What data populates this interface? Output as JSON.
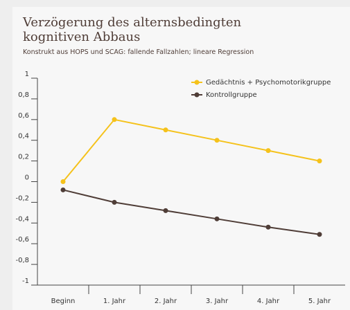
{
  "chart_data": {
    "type": "line",
    "title": "Verzögerung des alternsbedingten kognitiven Abbaus",
    "subtitle": "Konstrukt aus HOPS und SCAG: fallende Fallzahlen; lineare Regression",
    "categories": [
      "Beginn",
      "1. Jahr",
      "2. Jahr",
      "3. Jahr",
      "4. Jahr",
      "5. Jahr"
    ],
    "series": [
      {
        "name": "Gedächtnis + Psychomotorikgruppe",
        "color": "#f5c21b",
        "values": [
          0,
          0.6,
          0.5,
          0.4,
          0.3,
          0.2
        ]
      },
      {
        "name": "Kontrollgruppe",
        "color": "#4f3d37",
        "values": [
          -0.08,
          -0.2,
          -0.28,
          -0.36,
          -0.44,
          -0.51
        ]
      }
    ],
    "ylim": [
      -1,
      1
    ],
    "yticks": [
      1,
      {
        "value": 0.8,
        "label": "0,8"
      },
      {
        "value": 0.6,
        "label": "0,6"
      },
      {
        "value": 0.4,
        "label": "0,4"
      },
      {
        "value": 0.2,
        "label": "0,2"
      },
      0,
      {
        "value": -0.2,
        "label": "-0,2"
      },
      {
        "value": -0.4,
        "label": "-0,4"
      },
      {
        "value": -0.6,
        "label": "-0,6"
      },
      {
        "value": -0.8,
        "label": "-0,8"
      },
      -1
    ],
    "legend": "top-right"
  }
}
